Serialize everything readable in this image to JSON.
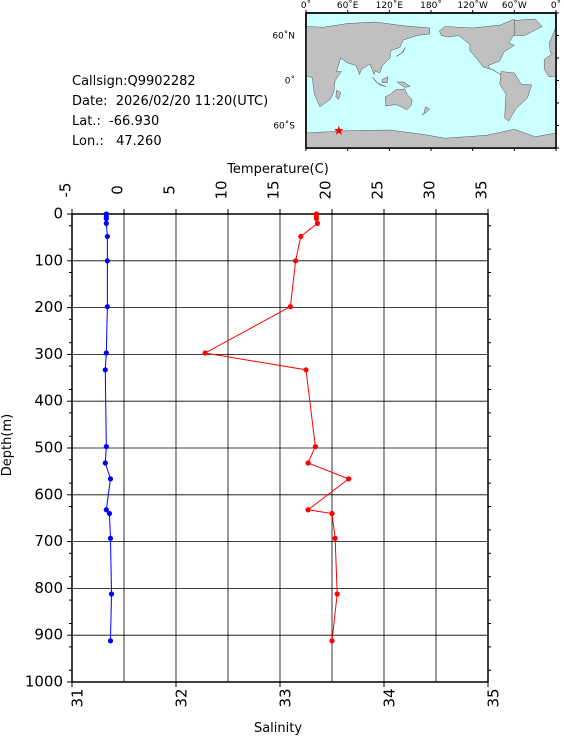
{
  "station": {
    "callsign": "Callsign:Q9902282",
    "date": "Date:  2026/02/20 11:20(UTC)",
    "lat": "Lat.:  -66.930",
    "lon": "Lon.:   47.260"
  },
  "map": {
    "lon_labels": [
      "0˚",
      "60˚E",
      "120˚E",
      "180˚",
      "120˚W",
      "60˚W",
      "0˚"
    ],
    "lat_labels": [
      "60˚N",
      "0˚",
      "60˚S"
    ],
    "station_lon": 47.26,
    "station_lat": -66.93,
    "ocean_color": "#ccffff",
    "land_color": "#c0c0c0",
    "marker_color": "#ff0000"
  },
  "chart_data": {
    "type": "line",
    "xlabel_top": "Temperature(C)",
    "xlabel_bottom": "Salinity",
    "ylabel": "Depth(m)",
    "ylim": [
      0,
      1000
    ],
    "y_inverted": true,
    "temperature_lim": [
      -5,
      35
    ],
    "salinity_lim": [
      31,
      35
    ],
    "temperature_ticks": [
      "-5",
      "0",
      "5",
      "10",
      "15",
      "20",
      "25",
      "30",
      "35"
    ],
    "salinity_ticks": [
      "31",
      "32",
      "33",
      "34",
      "35"
    ],
    "depth_ticks": [
      "0",
      "100",
      "200",
      "300",
      "400",
      "500",
      "600",
      "700",
      "800",
      "900",
      "1000"
    ],
    "grid": true,
    "series": [
      {
        "variable": "temperature",
        "color": "#ff0000",
        "points": [
          {
            "depth": 0,
            "value": 18.5
          },
          {
            "depth": 5,
            "value": 18.5
          },
          {
            "depth": 10,
            "value": 18.5
          },
          {
            "depth": 20,
            "value": 18.6
          },
          {
            "depth": 48,
            "value": 17.0
          },
          {
            "depth": 100,
            "value": 16.5
          },
          {
            "depth": 198,
            "value": 16.0
          },
          {
            "depth": 297,
            "value": 7.8
          },
          {
            "depth": 333,
            "value": 17.5
          },
          {
            "depth": 497,
            "value": 18.4
          },
          {
            "depth": 532,
            "value": 17.7
          },
          {
            "depth": 566,
            "value": 21.6
          },
          {
            "depth": 632,
            "value": 17.7
          },
          {
            "depth": 640,
            "value": 20.0
          },
          {
            "depth": 693,
            "value": 20.3
          },
          {
            "depth": 812,
            "value": 20.5
          },
          {
            "depth": 912,
            "value": 20.0
          }
        ]
      },
      {
        "variable": "salinity",
        "color": "#0000ff",
        "points": [
          {
            "depth": 0,
            "value": 31.33
          },
          {
            "depth": 5,
            "value": 31.33
          },
          {
            "depth": 10,
            "value": 31.33
          },
          {
            "depth": 20,
            "value": 31.33
          },
          {
            "depth": 48,
            "value": 31.34
          },
          {
            "depth": 100,
            "value": 31.34
          },
          {
            "depth": 198,
            "value": 31.34
          },
          {
            "depth": 297,
            "value": 31.33
          },
          {
            "depth": 333,
            "value": 31.32
          },
          {
            "depth": 497,
            "value": 31.33
          },
          {
            "depth": 532,
            "value": 31.32
          },
          {
            "depth": 566,
            "value": 31.37
          },
          {
            "depth": 632,
            "value": 31.33
          },
          {
            "depth": 640,
            "value": 31.36
          },
          {
            "depth": 693,
            "value": 31.37
          },
          {
            "depth": 812,
            "value": 31.38
          },
          {
            "depth": 912,
            "value": 31.37
          }
        ]
      }
    ]
  }
}
